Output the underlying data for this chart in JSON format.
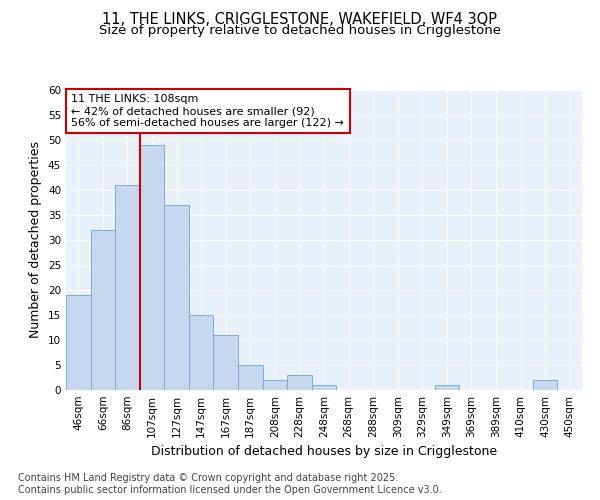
{
  "title_line1": "11, THE LINKS, CRIGGLESTONE, WAKEFIELD, WF4 3QP",
  "title_line2": "Size of property relative to detached houses in Crigglestone",
  "xlabel": "Distribution of detached houses by size in Crigglestone",
  "ylabel": "Number of detached properties",
  "categories": [
    "46sqm",
    "66sqm",
    "86sqm",
    "107sqm",
    "127sqm",
    "147sqm",
    "167sqm",
    "187sqm",
    "208sqm",
    "228sqm",
    "248sqm",
    "268sqm",
    "288sqm",
    "309sqm",
    "329sqm",
    "349sqm",
    "369sqm",
    "389sqm",
    "410sqm",
    "430sqm",
    "450sqm"
  ],
  "values": [
    19,
    32,
    41,
    49,
    37,
    15,
    11,
    5,
    2,
    3,
    1,
    0,
    0,
    0,
    0,
    1,
    0,
    0,
    0,
    2,
    0
  ],
  "bar_color": "#c5d8f0",
  "bar_edge_color": "#7aadd4",
  "background_color": "#e8f0fa",
  "grid_color": "#ffffff",
  "red_line_index": 3,
  "annotation_text": "11 THE LINKS: 108sqm\n← 42% of detached houses are smaller (92)\n56% of semi-detached houses are larger (122) →",
  "annotation_box_color": "#ffffff",
  "annotation_box_edge": "#cc0000",
  "annotation_text_color": "#000000",
  "redline_color": "#cc0000",
  "ylim": [
    0,
    60
  ],
  "yticks": [
    0,
    5,
    10,
    15,
    20,
    25,
    30,
    35,
    40,
    45,
    50,
    55,
    60
  ],
  "footer": "Contains HM Land Registry data © Crown copyright and database right 2025.\nContains public sector information licensed under the Open Government Licence v3.0.",
  "title_fontsize": 10.5,
  "subtitle_fontsize": 9.5,
  "axis_label_fontsize": 9,
  "tick_fontsize": 7.5,
  "annotation_fontsize": 8,
  "footer_fontsize": 7
}
